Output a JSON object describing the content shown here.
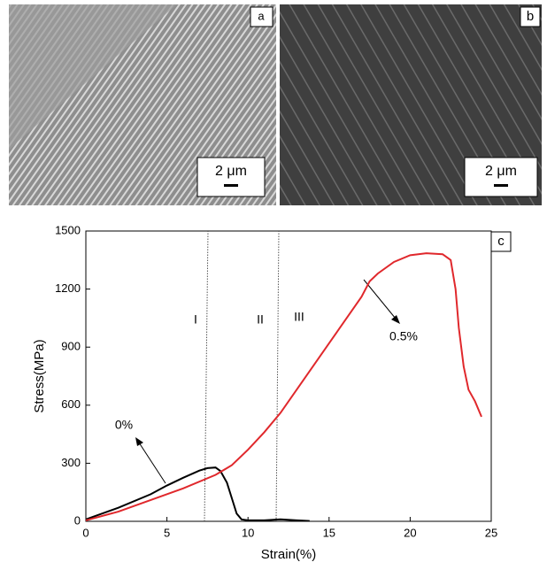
{
  "panels": [
    {
      "label": "a",
      "scale": "2 μm"
    },
    {
      "label": "b",
      "scale": "2 μm"
    }
  ],
  "chart_data": {
    "type": "line",
    "panel_label": "c",
    "x_label": "Strain(%)",
    "y_label": "Stress(MPa)",
    "xlim": [
      0,
      25
    ],
    "xticks": [
      0,
      5,
      10,
      15,
      20,
      25
    ],
    "ylim": [
      0,
      1500
    ],
    "yticks": [
      0,
      300,
      600,
      900,
      1200,
      1500
    ],
    "annotations": [
      "I",
      "II",
      "III"
    ],
    "series": [
      {
        "name": "0%",
        "color": "#000000",
        "x": [
          0,
          2,
          4,
          5,
          6,
          7,
          7.5,
          8,
          8.3,
          8.7,
          9,
          9.3,
          9.6,
          10,
          11,
          12,
          13,
          13.8
        ],
        "values": [
          10,
          70,
          140,
          185,
          225,
          262,
          275,
          278,
          260,
          200,
          120,
          40,
          10,
          5,
          5,
          10,
          5,
          2
        ]
      },
      {
        "name": "0.5%",
        "color": "#e0282c",
        "x": [
          0,
          2,
          4,
          6,
          8,
          9,
          10,
          11,
          12,
          13,
          14,
          15,
          16,
          17,
          17.5,
          18,
          19,
          20,
          21,
          22,
          22.5,
          22.8,
          23,
          23.3,
          23.6,
          24,
          24.4
        ],
        "values": [
          5,
          50,
          110,
          170,
          240,
          290,
          370,
          460,
          560,
          680,
          800,
          920,
          1040,
          1160,
          1240,
          1280,
          1340,
          1375,
          1385,
          1380,
          1350,
          1200,
          1000,
          800,
          680,
          620,
          540
        ]
      }
    ]
  }
}
